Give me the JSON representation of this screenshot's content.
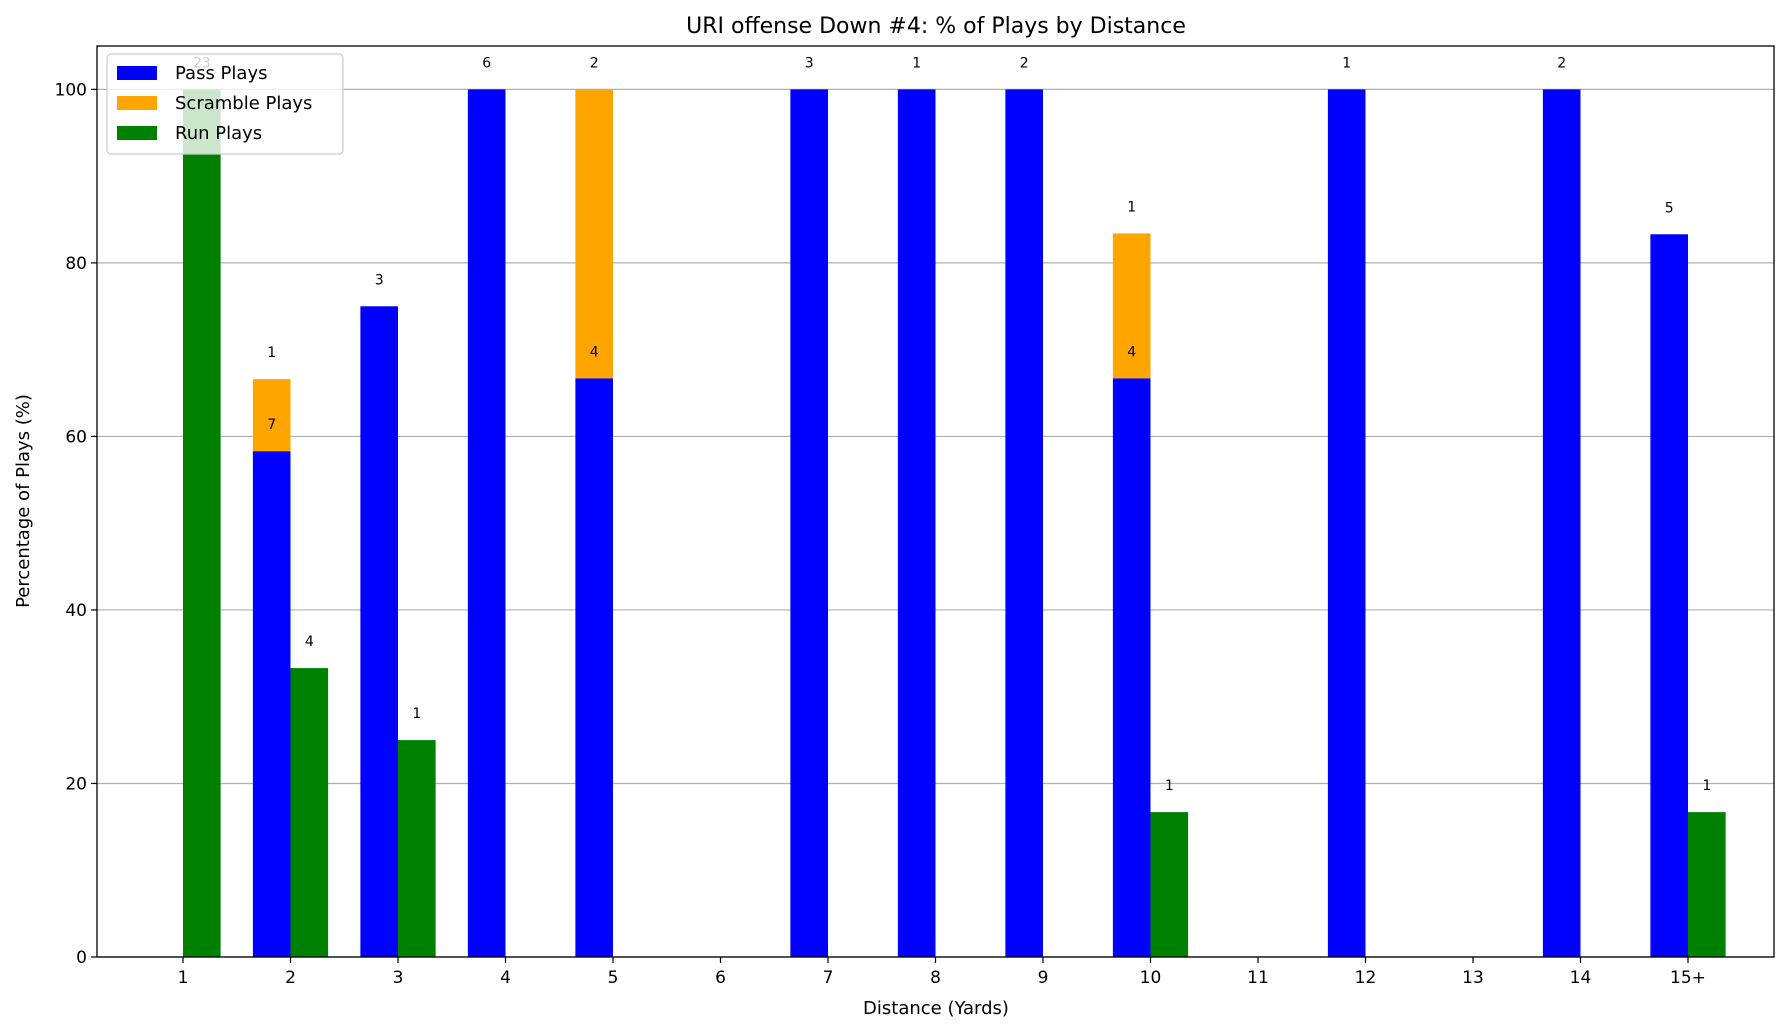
{
  "chart_data": {
    "type": "bar",
    "title": "URI offense Down #4: % of Plays by Distance",
    "xlabel": "Distance (Yards)",
    "ylabel": "Percentage of Plays (%)",
    "ylim": [
      0,
      105
    ],
    "yticks": [
      0,
      20,
      40,
      60,
      80,
      100
    ],
    "grid": "y",
    "legend_position": "top-left",
    "categories": [
      "1",
      "2",
      "3",
      "4",
      "5",
      "6",
      "7",
      "8",
      "9",
      "10",
      "11",
      "12",
      "13",
      "14",
      "15+"
    ],
    "series": [
      {
        "name": "Pass Plays",
        "color": "#0000ff",
        "values": [
          0,
          58.3,
          75,
          100,
          66.7,
          0,
          100,
          100,
          100,
          66.7,
          0,
          100,
          0,
          100,
          83.3
        ],
        "labels": [
          "",
          "7",
          "3",
          "6",
          "4",
          "",
          "3",
          "1",
          "2",
          "4",
          "",
          "1",
          "",
          "2",
          "5"
        ]
      },
      {
        "name": "Scramble Plays",
        "color": "#ffa500",
        "values": [
          0,
          8.3,
          0,
          0,
          33.3,
          0,
          0,
          0,
          0,
          16.7,
          0,
          0,
          0,
          0,
          0
        ],
        "labels": [
          "",
          "1",
          "",
          "",
          "2",
          "",
          "",
          "",
          "",
          "1",
          "",
          "",
          "",
          "",
          ""
        ]
      },
      {
        "name": "Run Plays",
        "color": "#008000",
        "values": [
          100,
          33.3,
          25,
          0,
          0,
          0,
          0,
          0,
          0,
          16.7,
          0,
          0,
          0,
          0,
          16.7
        ],
        "labels": [
          "23",
          "4",
          "1",
          "",
          "",
          "",
          "",
          "",
          "",
          "1",
          "",
          "",
          "",
          "",
          "1"
        ]
      }
    ]
  }
}
